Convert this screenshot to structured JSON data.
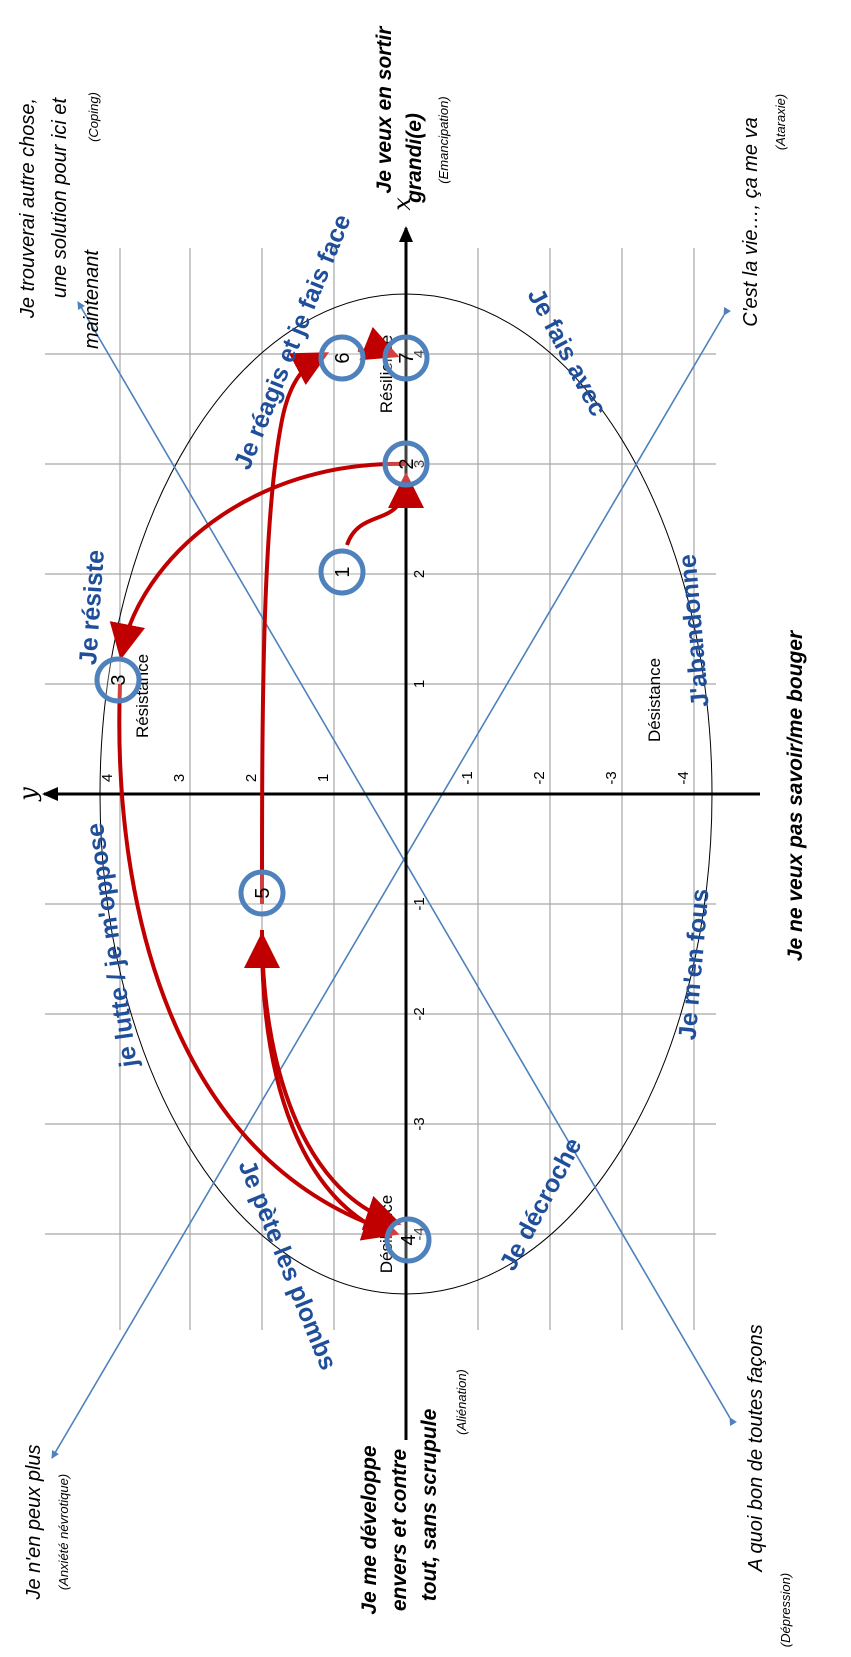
{
  "axes": {
    "x_symbol": "x",
    "y_symbol": "y"
  },
  "ticks": {
    "x": [
      "-4",
      "-3",
      "-2",
      "-1",
      "1",
      "2",
      "3",
      "4"
    ],
    "y": [
      "4",
      "3",
      "2",
      "1",
      "-1",
      "-2",
      "-3",
      "-4"
    ]
  },
  "zones": {
    "resistance": "Résistance",
    "desistance_lower": "Désistance",
    "resilience": "Résilience",
    "desilience": "Désilience"
  },
  "corners": {
    "top_left": {
      "lines": [
        "Je trouverai autre chose,",
        "une solution pour ici et",
        "maintenant"
      ],
      "sub": "(Coping)"
    },
    "top_right": {
      "lines": [
        "C'est la vie…, ça me va"
      ],
      "sub": "(Ataraxie)"
    },
    "bottom_left": {
      "lines": [
        "Je n'en peux plus"
      ],
      "sub": "(Anxiété névrotique)"
    },
    "bottom_right": {
      "lines": [
        "A quoi bon de toutes façons"
      ],
      "sub": "(Dépression)"
    }
  },
  "axis_ends": {
    "top": {
      "lines": [
        "Je veux en sortir",
        "grandi(e)"
      ],
      "sub": "(Emancipation)"
    },
    "bottom": {
      "lines": [
        "Je me développe",
        "envers et contre",
        "tout, sans scrupule"
      ],
      "sub": "(Aliénation)"
    },
    "right": {
      "lines": [
        "Je ne veux pas savoir/me bouger"
      ]
    }
  },
  "blue_labels": {
    "reagis": "Je réagis et je fais face",
    "resiste": "Je résiste",
    "lutte": "je lutte / je m'oppose",
    "pete": "Je pète les plombs",
    "decroche": "Je décroche",
    "fous": "Je m'en fous",
    "abandonne": "J'abandonne",
    "fais_avec": "Je fais avec"
  },
  "nodes": [
    {
      "id": "1",
      "x": 2,
      "y": 0.8
    },
    {
      "id": "2",
      "x": 3,
      "y": 0
    },
    {
      "id": "3",
      "x": 1,
      "y": 4
    },
    {
      "id": "4",
      "x": -4,
      "y": 0
    },
    {
      "id": "5",
      "x": -1,
      "y": 2
    },
    {
      "id": "6",
      "x": 4,
      "y": 0.8
    },
    {
      "id": "7",
      "x": 4,
      "y": 0
    }
  ],
  "transitions": [
    [
      "1",
      "2"
    ],
    [
      "2",
      "3"
    ],
    [
      "3",
      "4"
    ],
    [
      "4",
      "5"
    ],
    [
      "5",
      "4"
    ],
    [
      "5",
      "6"
    ],
    [
      "6",
      "7"
    ]
  ]
}
